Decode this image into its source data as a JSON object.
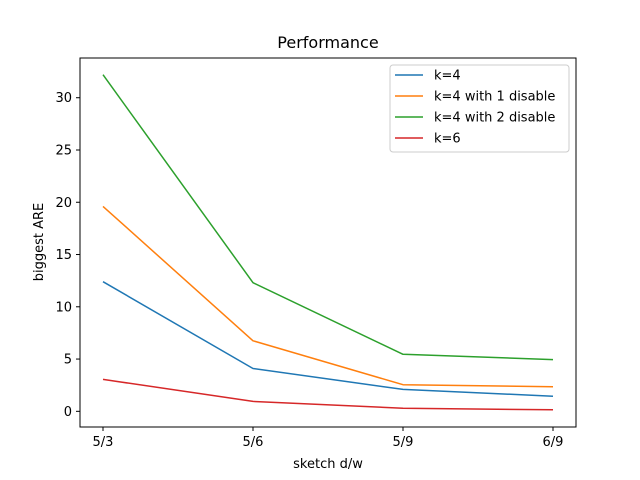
{
  "chart_data": {
    "type": "line",
    "title": "Performance",
    "xlabel": "sketch d/w",
    "ylabel": "biggest ARE",
    "categories": [
      "5/3",
      "5/6",
      "5/9",
      "6/9"
    ],
    "ylim": [
      -1.5,
      33.8
    ],
    "yticks": [
      0,
      5,
      10,
      15,
      20,
      25,
      30
    ],
    "grid": false,
    "legend_position": "upper right",
    "series": [
      {
        "name": "k=4",
        "color": "#1f77b4",
        "values": [
          12.4,
          4.1,
          2.1,
          1.45
        ]
      },
      {
        "name": "k=4 with 1 disable",
        "color": "#ff7f0e",
        "values": [
          19.6,
          6.75,
          2.55,
          2.35
        ]
      },
      {
        "name": "k=4 with 2 disable",
        "color": "#2ca02c",
        "values": [
          32.2,
          12.3,
          5.45,
          4.95
        ]
      },
      {
        "name": "k=6",
        "color": "#d62728",
        "values": [
          3.05,
          0.95,
          0.3,
          0.15
        ]
      }
    ]
  }
}
